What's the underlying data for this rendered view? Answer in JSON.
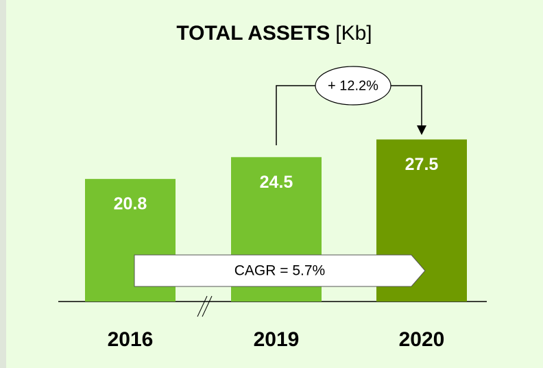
{
  "chart_data": {
    "type": "bar",
    "title": "TOTAL ASSETS",
    "title_unit": "[Kb]",
    "categories": [
      "2016",
      "2019",
      "2020"
    ],
    "values": [
      20.8,
      24.5,
      27.5
    ],
    "colors": [
      "#77c22f",
      "#77c22f",
      "#6f9a00"
    ],
    "annotations": {
      "growth": "+ 12.2%",
      "cagr": "CAGR = 5.7%"
    }
  }
}
